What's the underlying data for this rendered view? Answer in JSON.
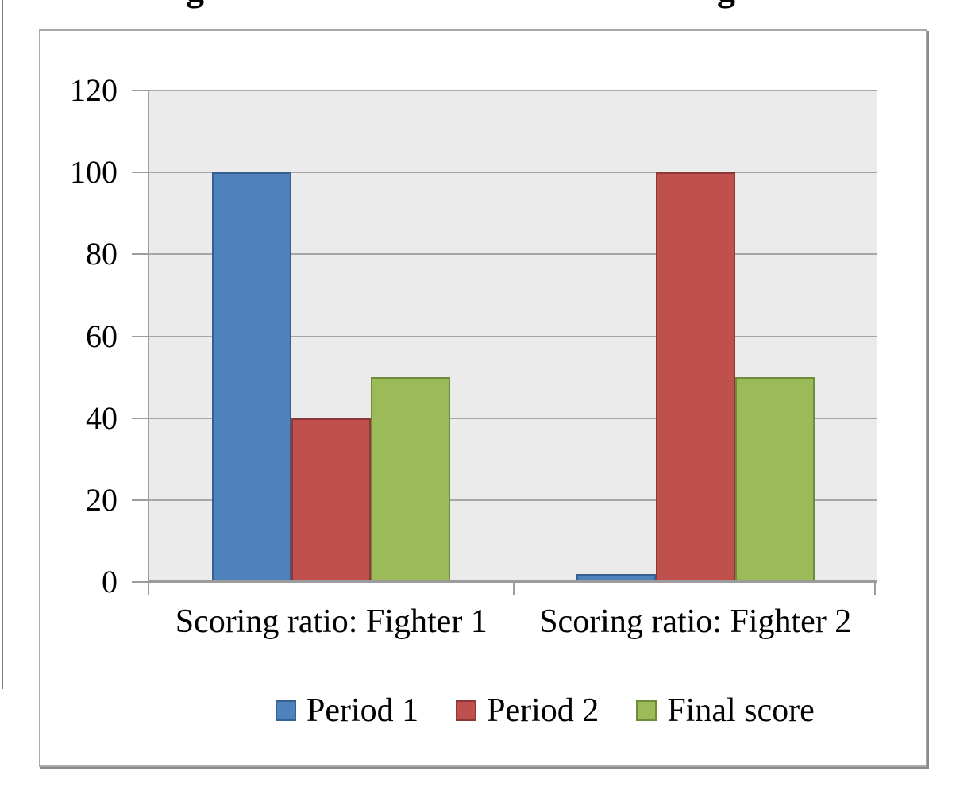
{
  "title_fragments": [
    "g",
    "g"
  ],
  "chart_data": {
    "type": "bar",
    "title": "",
    "xlabel": "",
    "ylabel": "",
    "categories": [
      "Scoring ratio: Fighter 1",
      "Scoring ratio: Fighter 2"
    ],
    "series": [
      {
        "name": "Period 1",
        "values": [
          100,
          2
        ],
        "fill": "#4F81BD",
        "border": "#36608D"
      },
      {
        "name": "Period 2",
        "values": [
          40,
          100
        ],
        "fill": "#C0504D",
        "border": "#8C3836"
      },
      {
        "name": "Final score",
        "values": [
          50,
          50
        ],
        "fill": "#9BBB59",
        "border": "#6F8C3B"
      }
    ],
    "ylim": [
      0,
      120
    ],
    "yticks": [
      0,
      20,
      40,
      60,
      80,
      100,
      120
    ],
    "grid": true,
    "legend_position": "bottom",
    "colors": {
      "plot_bg": "#EBEBEB",
      "gridline": "#A6A6A6",
      "axis": "#9C9C9C",
      "frame_border": "#A9A9A9",
      "text": "#000000"
    }
  }
}
